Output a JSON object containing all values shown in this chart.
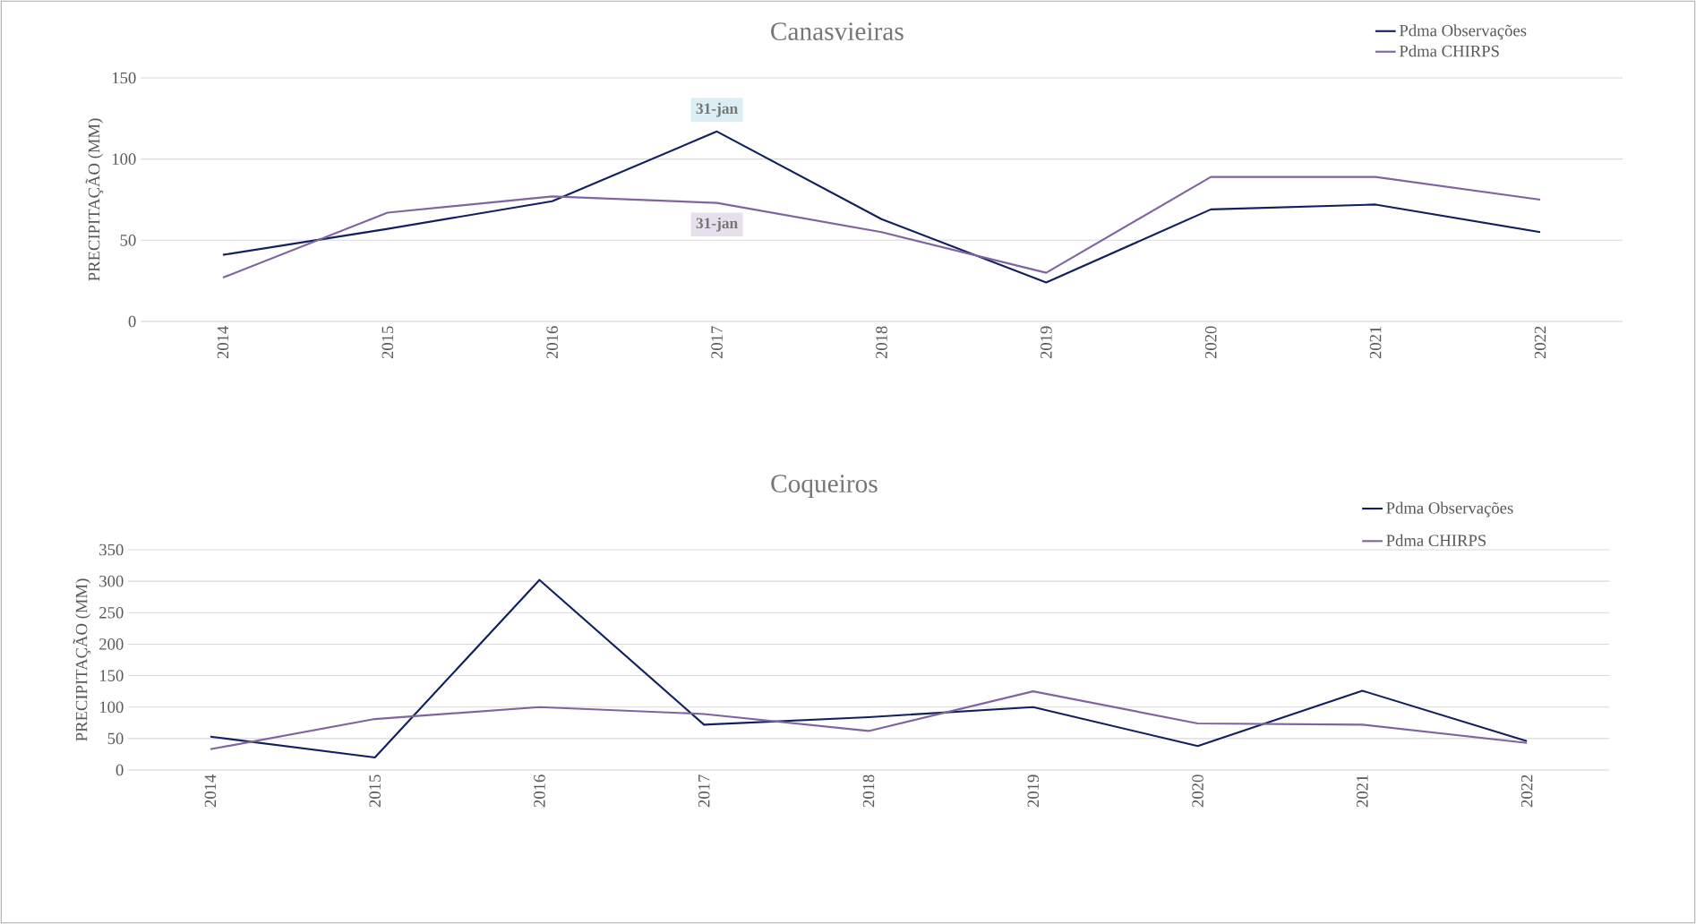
{
  "chart_data": [
    {
      "type": "line",
      "title": "Canasvieiras",
      "ylabel": "PRECIPITAÇÃO  (MM)",
      "categories": [
        "2014",
        "2015",
        "2016",
        "2017",
        "2018",
        "2019",
        "2020",
        "2021",
        "2022"
      ],
      "series": [
        {
          "name": "Pdma Observações",
          "color": "#112060",
          "values": [
            41,
            57,
            74,
            117,
            63,
            24,
            69,
            72,
            55
          ]
        },
        {
          "name": "Pdma CHIRPS",
          "color": "#8064a2",
          "values": [
            27,
            67,
            77,
            73,
            55,
            30,
            89,
            89,
            75
          ]
        }
      ],
      "ylim": [
        0,
        150
      ],
      "yticks": [
        0,
        50,
        100,
        150
      ],
      "grid": "y",
      "legend": "top right",
      "marker": "none",
      "line_style": "solid",
      "annotations": [
        {
          "text": "31-jan",
          "x": "2017",
          "y": 117
        },
        {
          "text": "31-jan",
          "x": "2017",
          "y": 73
        }
      ]
    },
    {
      "type": "line",
      "title": "Coqueiros",
      "ylabel": "PRECIPITAÇÃO  (MM)",
      "categories": [
        "2014",
        "2015",
        "2016",
        "2017",
        "2018",
        "2019",
        "2020",
        "2021",
        "2022"
      ],
      "series": [
        {
          "name": "Pdma Observações",
          "color": "#112060",
          "values": [
            53,
            20,
            302,
            72,
            84,
            100,
            38,
            126,
            46
          ]
        },
        {
          "name": "Pdma CHIRPS",
          "color": "#8064a2",
          "values": [
            33,
            81,
            100,
            89,
            62,
            125,
            74,
            72,
            43
          ]
        }
      ],
      "ylim": [
        0,
        350
      ],
      "yticks": [
        0,
        50,
        100,
        150,
        200,
        250,
        300,
        350
      ],
      "grid": "y",
      "legend": "top right",
      "marker": "none",
      "line_style": "solid"
    }
  ]
}
